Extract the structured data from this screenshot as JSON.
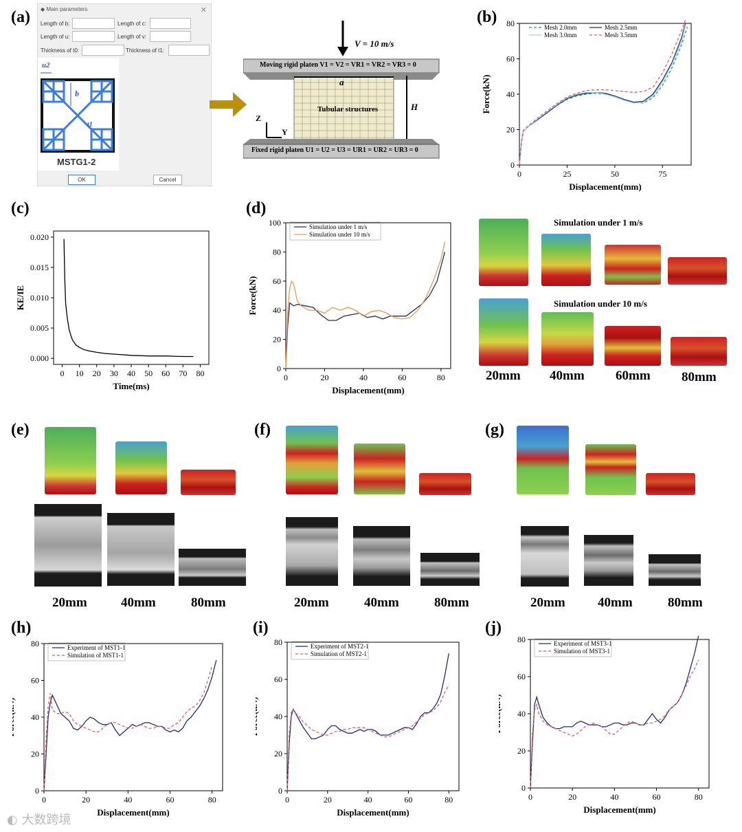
{
  "panels": {
    "a": "(a)",
    "b": "(b)",
    "c": "(c)",
    "d": "(d)",
    "e": "(e)",
    "f": "(f)",
    "g": "(g)",
    "h": "(h)",
    "i": "(i)",
    "j": "(j)"
  },
  "dialog": {
    "title": "Main parameters",
    "fields": [
      "Length of b:",
      "Length of c:",
      "Length of u:",
      "Length of v:",
      "Thickness of t0:",
      "Thickness of t1:"
    ],
    "ok": "OK",
    "cancel": "Cancel",
    "shape_label": "MSTG1-2",
    "dims": {
      "u2": "u2",
      "b": "b",
      "t1": "t1"
    }
  },
  "setup": {
    "velocity": "V = 10 m/s",
    "moving": "Moving rigid platen   V1 = V2 = VR1 = VR2 = VR3 = 0",
    "fixed": "Fixed rigid platen   U1 = U2 = U3 = UR1 = UR2 = UR3 = 0",
    "tube": "Tubular structures",
    "a": "a",
    "H": "H",
    "Z": "Z",
    "Y": "Y"
  },
  "d_images": {
    "title1": "Simulation under 1 m/s",
    "title2": "Simulation under 10 m/s",
    "labels": [
      "20mm",
      "40mm",
      "60mm",
      "80mm"
    ]
  },
  "efg_labels": {
    "e": [
      "20mm",
      "40mm",
      "80mm"
    ],
    "f": [
      "20mm",
      "40mm",
      "80mm"
    ],
    "g": [
      "20mm",
      "40mm",
      "80mm"
    ]
  },
  "watermark": "大数跨境",
  "chart_data": [
    {
      "id": "b",
      "type": "line",
      "xlabel": "Displacement(mm)",
      "ylabel": "Force(kN)",
      "xlim": [
        0,
        90
      ],
      "ylim": [
        0,
        80
      ],
      "xticks": [
        0,
        25,
        50,
        75
      ],
      "yticks": [
        0,
        20,
        40,
        60,
        80
      ],
      "series": [
        {
          "name": "Mesh 2.0mm",
          "color": "#2e9e4a",
          "dash": "4,3",
          "x": [
            0,
            1,
            2,
            5,
            10,
            15,
            20,
            25,
            30,
            35,
            40,
            45,
            50,
            55,
            60,
            65,
            70,
            75,
            80,
            85,
            88
          ],
          "y": [
            0,
            12,
            19,
            22,
            26,
            30,
            34,
            37,
            39,
            40,
            40.5,
            40,
            38.5,
            37,
            35.5,
            35,
            38,
            45,
            55,
            68,
            78
          ]
        },
        {
          "name": "Mesh 2.5mm",
          "color": "#1f2d7a",
          "dash": "",
          "x": [
            0,
            1,
            2,
            5,
            10,
            15,
            20,
            25,
            30,
            35,
            40,
            45,
            50,
            55,
            60,
            65,
            70,
            75,
            80,
            85,
            87
          ],
          "y": [
            0,
            12,
            19,
            22,
            26,
            30,
            34,
            37.5,
            39.5,
            40.5,
            41,
            40.5,
            39,
            37,
            35.5,
            36,
            40,
            48,
            58,
            72,
            80
          ]
        },
        {
          "name": "Mesh 3.0mm",
          "color": "#9ad0e8",
          "dash": "",
          "x": [
            0,
            1,
            2,
            5,
            10,
            15,
            20,
            25,
            30,
            35,
            40,
            45,
            50,
            55,
            60,
            65,
            70,
            75,
            80,
            85,
            87
          ],
          "y": [
            0,
            12,
            19,
            22,
            26.5,
            30.5,
            34.5,
            38,
            40,
            41,
            41,
            40,
            38.5,
            36.5,
            35,
            35.5,
            39,
            47,
            57,
            70,
            79
          ]
        },
        {
          "name": "Mesh 3.5mm",
          "color": "#e85a5a",
          "dash": "4,3",
          "x": [
            0,
            1,
            2,
            5,
            10,
            15,
            20,
            25,
            30,
            35,
            40,
            45,
            50,
            55,
            60,
            65,
            70,
            75,
            80,
            85,
            87
          ],
          "y": [
            0,
            13,
            19.5,
            22.5,
            27,
            31,
            35,
            38.5,
            40.5,
            42,
            42.5,
            42.5,
            42,
            41.5,
            41,
            41.5,
            44,
            52,
            63,
            76,
            82
          ]
        }
      ]
    },
    {
      "id": "c",
      "type": "line",
      "xlabel": "Time(ms)",
      "ylabel": "KE/IE",
      "xlim": [
        -5,
        85
      ],
      "ylim": [
        -0.001,
        0.021
      ],
      "xticks": [
        0,
        10,
        20,
        30,
        40,
        50,
        60,
        70,
        80
      ],
      "yticks": [
        0.0,
        0.005,
        0.01,
        0.015,
        0.02
      ],
      "yticklabels": [
        "0.000",
        "0.005",
        "0.010",
        "0.015",
        "0.020"
      ],
      "series": [
        {
          "name": "KE/IE",
          "color": "#000",
          "dash": "",
          "x": [
            1,
            1.5,
            2,
            3,
            4,
            5,
            6,
            8,
            10,
            13,
            16,
            20,
            25,
            30,
            40,
            50,
            60,
            70,
            76
          ],
          "y": [
            0.0197,
            0.013,
            0.009,
            0.0065,
            0.0048,
            0.0038,
            0.003,
            0.0022,
            0.0018,
            0.0014,
            0.0012,
            0.001,
            0.0008,
            0.0007,
            0.0005,
            0.0004,
            0.0004,
            0.0003,
            0.0003
          ]
        }
      ]
    },
    {
      "id": "d",
      "type": "line",
      "xlabel": "Displacement(mm)",
      "ylabel": "Force(kN)",
      "xlim": [
        0,
        85
      ],
      "ylim": [
        0,
        100
      ],
      "xticks": [
        0,
        20,
        40,
        60,
        80
      ],
      "yticks": [
        0,
        20,
        40,
        60,
        80,
        100
      ],
      "series": [
        {
          "name": "Simulation under 1 m/s",
          "color": "#1f2d7a",
          "dash": "",
          "x": [
            0,
            1,
            2,
            4,
            6,
            10,
            14,
            18,
            22,
            26,
            30,
            34,
            38,
            42,
            46,
            50,
            54,
            58,
            62,
            66,
            70,
            74,
            78,
            82
          ],
          "y": [
            0,
            30,
            45,
            43,
            44,
            43,
            42,
            37,
            33,
            33,
            36,
            37,
            38,
            35,
            36,
            34,
            36,
            36,
            36,
            40,
            44,
            50,
            60,
            80
          ]
        },
        {
          "name": "Simulation under 10 m/s",
          "color": "#f09a4a",
          "dash": "",
          "x": [
            0,
            1,
            2,
            3,
            4,
            6,
            8,
            12,
            16,
            20,
            24,
            28,
            32,
            36,
            40,
            44,
            48,
            52,
            56,
            60,
            64,
            68,
            72,
            76,
            80,
            82
          ],
          "y": [
            0,
            40,
            55,
            60,
            58,
            46,
            43,
            40,
            40,
            38,
            42,
            40,
            42,
            40,
            36,
            39,
            40,
            38,
            35,
            34,
            35,
            40,
            48,
            60,
            75,
            87
          ]
        }
      ]
    },
    {
      "id": "h",
      "type": "line",
      "xlabel": "Displacement(mm)",
      "ylabel": "Force(kN)",
      "xlim": [
        0,
        85
      ],
      "ylim": [
        0,
        80
      ],
      "xticks": [
        0,
        20,
        40,
        60,
        80
      ],
      "yticks": [
        0,
        20,
        40,
        60,
        80
      ],
      "series": [
        {
          "name": "Experiment of MST1-1",
          "color": "#1f2d7a",
          "dash": "",
          "x": [
            0,
            1,
            2,
            3,
            4,
            6,
            8,
            10,
            12,
            14,
            16,
            18,
            20,
            22,
            24,
            26,
            28,
            30,
            32,
            34,
            36,
            38,
            40,
            42,
            44,
            46,
            48,
            50,
            52,
            54,
            56,
            58,
            60,
            62,
            64,
            66,
            68,
            70,
            72,
            74,
            76,
            78,
            80,
            82
          ],
          "y": [
            0,
            20,
            40,
            48,
            52,
            47,
            42,
            40,
            38,
            34,
            33,
            35,
            38,
            40,
            39,
            37,
            36,
            36,
            37,
            33,
            30,
            32,
            34,
            36,
            35,
            36,
            37,
            37,
            36,
            35,
            35,
            33,
            32,
            33,
            32,
            34,
            38,
            40,
            43,
            46,
            50,
            55,
            62,
            71
          ]
        },
        {
          "name": "Simulation of MST1-1",
          "color": "#e85a5a",
          "dash": "4,3",
          "x": [
            0,
            1,
            2,
            3,
            4,
            6,
            8,
            10,
            12,
            14,
            16,
            18,
            20,
            22,
            24,
            26,
            28,
            30,
            32,
            34,
            36,
            38,
            40,
            42,
            44,
            46,
            48,
            50,
            52,
            54,
            56,
            58,
            60,
            62,
            64,
            66,
            68,
            70,
            72,
            74,
            76,
            78,
            80
          ],
          "y": [
            0,
            28,
            46,
            53,
            44,
            42,
            42,
            43,
            42,
            38,
            36,
            35,
            34,
            33,
            32,
            32,
            34,
            36,
            37,
            37,
            36,
            35,
            34,
            34,
            35,
            36,
            35,
            34,
            34,
            35,
            35,
            34,
            34,
            36,
            37,
            40,
            43,
            45,
            46,
            49,
            53,
            60,
            68
          ]
        }
      ]
    },
    {
      "id": "i",
      "type": "line",
      "xlabel": "Displacement(mm)",
      "ylabel": "Force(kN)",
      "xlim": [
        0,
        85
      ],
      "ylim": [
        0,
        80
      ],
      "xticks": [
        0,
        20,
        40,
        60,
        80
      ],
      "yticks": [
        0,
        20,
        40,
        60,
        80
      ],
      "series": [
        {
          "name": "Experiment of MST2-1",
          "color": "#1f2d7a",
          "dash": "",
          "x": [
            0,
            1,
            2,
            3,
            4,
            6,
            8,
            10,
            12,
            14,
            16,
            18,
            20,
            22,
            24,
            26,
            28,
            30,
            32,
            34,
            36,
            38,
            40,
            42,
            44,
            46,
            48,
            50,
            52,
            54,
            56,
            58,
            60,
            62,
            64,
            66,
            68,
            70,
            72,
            74,
            76,
            78,
            80
          ],
          "y": [
            0,
            25,
            40,
            44,
            42,
            38,
            34,
            31,
            28,
            28,
            29,
            30,
            33,
            35,
            35,
            33,
            32,
            31,
            31,
            32,
            33,
            32,
            33,
            33,
            32,
            30,
            30,
            30,
            31,
            32,
            33,
            34,
            34,
            33,
            36,
            40,
            42,
            42,
            44,
            47,
            52,
            62,
            74
          ]
        },
        {
          "name": "Simulation of MST2-1",
          "color": "#e85a5a",
          "dash": "4,3",
          "x": [
            0,
            1,
            2,
            3,
            4,
            6,
            8,
            10,
            12,
            14,
            16,
            18,
            20,
            22,
            24,
            26,
            28,
            30,
            32,
            34,
            36,
            38,
            40,
            42,
            44,
            46,
            48,
            50,
            52,
            54,
            56,
            58,
            60,
            62,
            64,
            66,
            68,
            70,
            72,
            74,
            76,
            78,
            80
          ],
          "y": [
            0,
            30,
            42,
            44,
            42,
            40,
            37,
            35,
            33,
            32,
            31,
            30,
            30,
            31,
            32,
            32,
            33,
            33,
            34,
            34,
            34,
            34,
            33,
            32,
            31,
            30,
            29,
            29,
            30,
            31,
            32,
            33,
            34,
            35,
            37,
            39,
            41,
            42,
            43,
            45,
            48,
            53,
            57
          ]
        }
      ]
    },
    {
      "id": "j",
      "type": "line",
      "xlabel": "Displacement(mm)",
      "ylabel": "Force(kN)",
      "xlim": [
        0,
        85
      ],
      "ylim": [
        0,
        80
      ],
      "xticks": [
        0,
        20,
        40,
        60,
        80
      ],
      "yticks": [
        0,
        20,
        40,
        60,
        80
      ],
      "series": [
        {
          "name": "Experiment of MST3-1",
          "color": "#1f2d7a",
          "dash": "",
          "x": [
            0,
            1,
            2,
            3,
            4,
            6,
            8,
            10,
            12,
            14,
            16,
            18,
            20,
            22,
            24,
            26,
            28,
            30,
            32,
            34,
            36,
            38,
            40,
            42,
            44,
            46,
            48,
            50,
            52,
            54,
            56,
            58,
            60,
            62,
            64,
            66,
            68,
            70,
            72,
            74,
            76,
            78,
            80
          ],
          "y": [
            0,
            25,
            45,
            49,
            45,
            38,
            35,
            33,
            32,
            32,
            33,
            33,
            33,
            35,
            36,
            35,
            34,
            34,
            34,
            33,
            33,
            34,
            35,
            35,
            34,
            34,
            35,
            35,
            34,
            34,
            37,
            40,
            37,
            35,
            38,
            42,
            44,
            46,
            50,
            56,
            64,
            72,
            82
          ]
        },
        {
          "name": "Simulation of MST3-1",
          "color": "#e85a5a",
          "dash": "4,3",
          "x": [
            0,
            1,
            2,
            3,
            4,
            6,
            8,
            10,
            12,
            14,
            16,
            18,
            20,
            22,
            24,
            26,
            28,
            30,
            32,
            34,
            36,
            38,
            40,
            42,
            44,
            46,
            48,
            50,
            52,
            54,
            56,
            58,
            60,
            62,
            64,
            66,
            68,
            70,
            72,
            74,
            76,
            78,
            80
          ],
          "y": [
            0,
            30,
            42,
            45,
            40,
            36,
            34,
            33,
            32,
            31,
            30,
            29,
            28,
            29,
            31,
            33,
            34,
            35,
            34,
            33,
            31,
            29,
            29,
            31,
            33,
            35,
            36,
            35,
            34,
            34,
            35,
            35,
            36,
            37,
            39,
            42,
            44,
            46,
            50,
            55,
            60,
            64,
            69
          ]
        }
      ]
    }
  ]
}
